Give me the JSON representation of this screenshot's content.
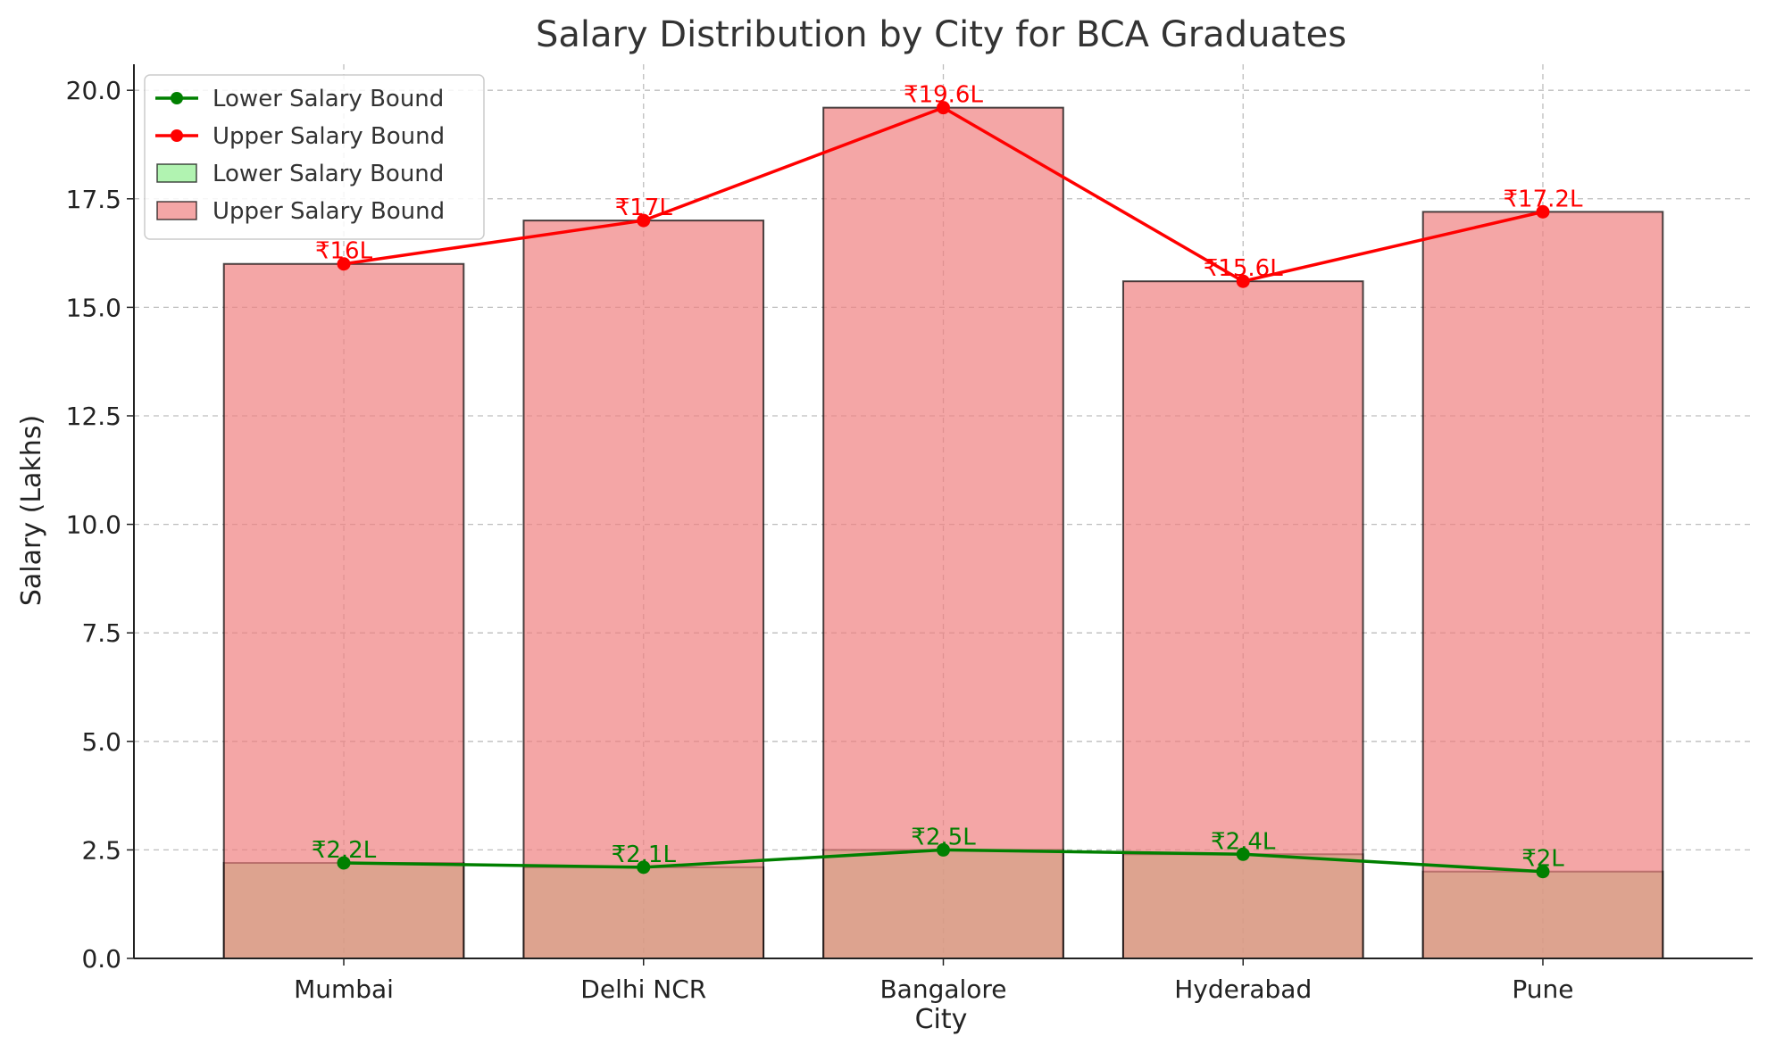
{
  "chart_data": {
    "type": "bar",
    "title": "Salary Distribution by City for BCA Graduates",
    "xlabel": "City",
    "ylabel": "Salary (Lakhs)",
    "categories": [
      "Mumbai",
      "Delhi NCR",
      "Bangalore",
      "Hyderabad",
      "Pune"
    ],
    "ylim": [
      0,
      20.6
    ],
    "yticks": [
      "0.0",
      "2.5",
      "5.0",
      "7.5",
      "10.0",
      "12.5",
      "15.0",
      "17.5",
      "20.0"
    ],
    "grid": true,
    "legend_position": "top-left",
    "series": [
      {
        "name": "Lower Salary Bound",
        "kind": "bar",
        "color": "#90ee90",
        "values": [
          2.2,
          2.1,
          2.5,
          2.4,
          2.0
        ]
      },
      {
        "name": "Upper Salary Bound",
        "kind": "bar",
        "color": "#f08080",
        "values": [
          16,
          17,
          19.6,
          15.6,
          17.2
        ]
      },
      {
        "name": "Lower Salary Bound",
        "kind": "line",
        "color": "#008000",
        "values": [
          2.2,
          2.1,
          2.5,
          2.4,
          2.0
        ],
        "labels": [
          "₹2.2L",
          "₹2.1L",
          "₹2.5L",
          "₹2.4L",
          "₹2L"
        ]
      },
      {
        "name": "Upper Salary Bound",
        "kind": "line",
        "color": "#ff0000",
        "values": [
          16,
          17,
          19.6,
          15.6,
          17.2
        ],
        "labels": [
          "₹16L",
          "₹17L",
          "₹19.6L",
          "₹15.6L",
          "₹17.2L"
        ]
      }
    ],
    "legend": [
      {
        "label": "Lower Salary Bound",
        "kind": "line",
        "color": "#008000"
      },
      {
        "label": "Upper Salary Bound",
        "kind": "line",
        "color": "#ff0000"
      },
      {
        "label": "Lower Salary Bound",
        "kind": "bar",
        "color": "#90ee90"
      },
      {
        "label": "Upper Salary Bound",
        "kind": "bar",
        "color": "#f08080"
      }
    ]
  }
}
